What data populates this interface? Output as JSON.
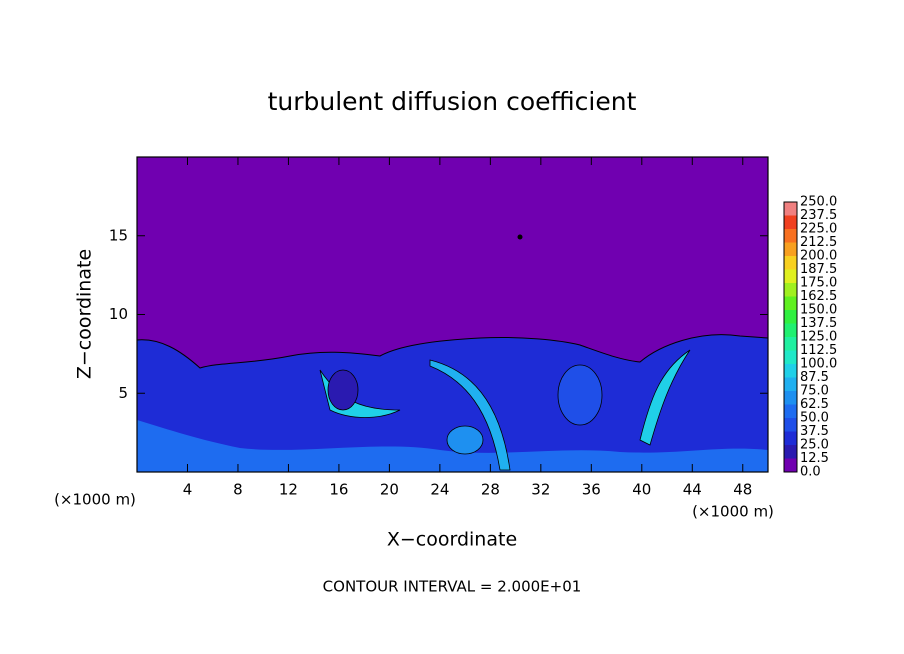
{
  "chart_data": {
    "type": "contour",
    "title": "turbulent diffusion coefficient",
    "xlabel": "X−coordinate",
    "ylabel": "Z−coordinate",
    "x_unit_left": "(×1000 m)",
    "x_unit_right": "(×1000 m)",
    "footnote": "CONTOUR INTERVAL = 2.000E+01",
    "xlim": [
      0,
      50
    ],
    "ylim": [
      0,
      20
    ],
    "xticks": [
      4,
      8,
      12,
      16,
      20,
      24,
      28,
      32,
      36,
      40,
      44,
      48
    ],
    "yticks": [
      5,
      10,
      15
    ],
    "colorbar": {
      "levels": [
        {
          "value": 0,
          "label": "0.0"
        },
        {
          "value": 12.5,
          "label": "12.5"
        },
        {
          "value": 25,
          "label": "25.0"
        },
        {
          "value": 37.5,
          "label": "37.5"
        },
        {
          "value": 50,
          "label": "50.0"
        },
        {
          "value": 62.5,
          "label": "62.5"
        },
        {
          "value": 75,
          "label": "75.0"
        },
        {
          "value": 87.5,
          "label": "87.5"
        },
        {
          "value": 100,
          "label": "100.0"
        },
        {
          "value": 112.5,
          "label": "112.5"
        },
        {
          "value": 125,
          "label": "125.0"
        },
        {
          "value": 137.5,
          "label": "137.5"
        },
        {
          "value": 150,
          "label": "150.0"
        },
        {
          "value": 162.5,
          "label": "162.5"
        },
        {
          "value": 175,
          "label": "175.0"
        },
        {
          "value": 187.5,
          "label": "187.5"
        },
        {
          "value": 200,
          "label": "200.0"
        },
        {
          "value": 212.5,
          "label": "212.5"
        },
        {
          "value": 225,
          "label": "225.0"
        },
        {
          "value": 237.5,
          "label": "237.5"
        },
        {
          "value": 250,
          "label": "250.0"
        }
      ],
      "colors": [
        "#7000b0",
        "#2a1ab0",
        "#1e2cd6",
        "#1f4fe8",
        "#1e6cf0",
        "#1e90f0",
        "#20b0f0",
        "#20d0e8",
        "#20e8c8",
        "#20f0a0",
        "#20f070",
        "#30f040",
        "#60f020",
        "#a0f020",
        "#e0f020",
        "#f8d020",
        "#f8a020",
        "#f87020",
        "#f04020",
        "#f08080"
      ]
    }
  }
}
